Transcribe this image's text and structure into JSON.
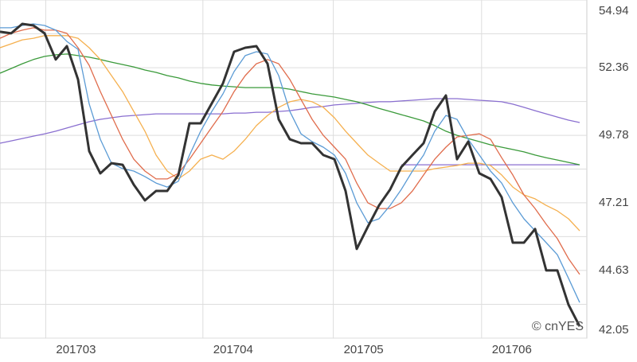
{
  "chart_data": {
    "type": "line",
    "watermark": "© cnYES",
    "xlim": [
      0,
      52.64
    ],
    "xticks": [
      {
        "value": 4.1,
        "label": "201703"
      },
      {
        "value": 18.2,
        "label": "201704"
      },
      {
        "value": 29.9,
        "label": "201705"
      },
      {
        "value": 43.2,
        "label": "201706"
      }
    ],
    "ylim": [
      42.05,
      54.94
    ],
    "yticks": [
      42.05,
      44.63,
      47.21,
      49.78,
      52.36,
      54.94
    ],
    "grid": true,
    "x": [
      0,
      1,
      2,
      3,
      4,
      5,
      6,
      7,
      8,
      9,
      10,
      11,
      12,
      13,
      14,
      15,
      16,
      17,
      18,
      19,
      20,
      21,
      22,
      23,
      24,
      25,
      26,
      27,
      28,
      29,
      30,
      31,
      32,
      33,
      34,
      35,
      36,
      37,
      38,
      39,
      40,
      41,
      42,
      43,
      44,
      45,
      46,
      47,
      48,
      49,
      50,
      51,
      52
    ],
    "series": [
      {
        "color": "#8a6fd0",
        "values": [
          49.48,
          49.57,
          49.66,
          49.75,
          49.84,
          49.94,
          50.06,
          50.18,
          50.3,
          50.39,
          50.45,
          50.51,
          50.54,
          50.57,
          50.6,
          50.6,
          50.6,
          50.6,
          50.6,
          50.6,
          50.6,
          50.63,
          50.63,
          50.66,
          50.66,
          50.69,
          50.72,
          50.78,
          50.85,
          50.88,
          50.94,
          50.97,
          51.0,
          51.03,
          51.06,
          51.06,
          51.09,
          51.12,
          51.15,
          51.18,
          51.18,
          51.18,
          51.15,
          51.12,
          51.09,
          51.06,
          50.97,
          50.85,
          50.72,
          50.6,
          50.48,
          50.36,
          50.27
        ]
      },
      {
        "color": "#8a6fd0",
        "values": [
          null,
          null,
          null,
          null,
          null,
          null,
          null,
          null,
          null,
          null,
          null,
          null,
          null,
          null,
          null,
          null,
          null,
          null,
          null,
          null,
          null,
          null,
          null,
          null,
          null,
          null,
          null,
          null,
          null,
          null,
          null,
          null,
          null,
          null,
          null,
          null,
          48.66,
          48.66,
          48.66,
          48.66,
          48.66,
          48.66,
          48.66,
          48.66,
          48.66,
          48.66,
          48.66,
          48.66,
          48.66,
          48.66,
          48.66,
          48.66,
          48.66
        ]
      },
      {
        "color": "#3a9a3a",
        "values": [
          52.15,
          52.33,
          52.51,
          52.67,
          52.79,
          52.85,
          52.88,
          52.82,
          52.76,
          52.67,
          52.57,
          52.48,
          52.39,
          52.27,
          52.18,
          52.06,
          51.97,
          51.85,
          51.76,
          51.7,
          51.66,
          51.63,
          51.6,
          51.6,
          51.6,
          51.6,
          51.54,
          51.45,
          51.36,
          51.3,
          51.24,
          51.15,
          51.06,
          50.94,
          50.81,
          50.69,
          50.57,
          50.45,
          50.33,
          50.15,
          49.94,
          49.78,
          49.66,
          49.54,
          49.42,
          49.33,
          49.24,
          49.15,
          49.03,
          48.93,
          48.84,
          48.75,
          48.66
        ]
      },
      {
        "color": "#f5b04f",
        "values": [
          53.12,
          53.27,
          53.42,
          53.48,
          53.58,
          53.58,
          53.58,
          53.48,
          53.12,
          52.67,
          52.06,
          51.45,
          50.69,
          49.94,
          49.03,
          48.42,
          48.12,
          48.42,
          48.87,
          49.03,
          48.87,
          49.18,
          49.63,
          50.15,
          50.54,
          50.85,
          51.06,
          51.15,
          51.06,
          50.85,
          50.45,
          49.94,
          49.48,
          49.03,
          48.72,
          48.42,
          48.42,
          48.42,
          48.42,
          48.51,
          48.57,
          48.63,
          48.72,
          48.72,
          48.63,
          48.27,
          47.81,
          47.51,
          47.36,
          47.11,
          46.9,
          46.6,
          46.14
        ]
      },
      {
        "color": "#e06c4c",
        "values": [
          53.48,
          53.67,
          53.79,
          53.88,
          53.79,
          53.79,
          53.67,
          53.12,
          52.45,
          51.45,
          50.54,
          49.63,
          48.87,
          48.42,
          48.12,
          48.12,
          48.33,
          48.87,
          49.48,
          50.09,
          50.69,
          51.45,
          52.06,
          52.51,
          52.67,
          52.51,
          51.91,
          51.15,
          50.39,
          49.78,
          49.33,
          48.87,
          47.96,
          47.21,
          46.99,
          46.99,
          47.21,
          47.66,
          48.27,
          48.87,
          49.33,
          49.72,
          49.78,
          49.84,
          49.63,
          48.93,
          48.27,
          47.51,
          46.99,
          46.39,
          45.84,
          45.08,
          44.48
        ]
      },
      {
        "color": "#5b9bd5",
        "values": [
          53.88,
          53.88,
          53.97,
          54.03,
          53.97,
          53.79,
          53.36,
          53.06,
          50.98,
          49.63,
          48.72,
          48.51,
          48.42,
          48.21,
          47.96,
          47.81,
          48.03,
          49.03,
          49.94,
          50.69,
          51.36,
          52.21,
          52.82,
          52.97,
          52.88,
          52.06,
          50.69,
          49.84,
          49.54,
          49.33,
          49.03,
          48.33,
          47.21,
          46.45,
          46.6,
          47.11,
          47.72,
          48.42,
          49.03,
          49.94,
          50.54,
          50.39,
          49.63,
          49.03,
          48.42,
          47.96,
          47.21,
          46.6,
          46.14,
          45.69,
          45.23,
          44.33,
          43.41
        ]
      },
      {
        "color": "#333333",
        "values": [
          53.73,
          53.67,
          54.03,
          53.97,
          53.67,
          52.67,
          53.18,
          51.91,
          49.18,
          48.33,
          48.72,
          48.66,
          47.9,
          47.3,
          47.66,
          47.66,
          48.27,
          50.24,
          50.24,
          51.0,
          51.76,
          52.97,
          53.12,
          53.18,
          52.51,
          50.39,
          49.63,
          49.48,
          49.48,
          49.03,
          48.87,
          47.66,
          45.45,
          46.3,
          47.11,
          47.72,
          48.57,
          49.03,
          49.48,
          50.69,
          51.3,
          48.87,
          49.54,
          48.33,
          48.12,
          47.42,
          45.69,
          45.69,
          46.21,
          44.63,
          44.63,
          43.32,
          42.5
        ]
      }
    ]
  }
}
